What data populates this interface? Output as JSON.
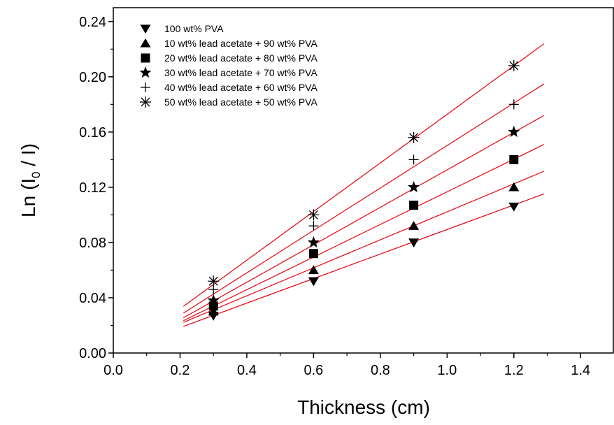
{
  "chart_data": {
    "type": "scatter",
    "xlabel": "Thickness (cm)",
    "ylabel_main": "Ln (I",
    "ylabel_sub": "0",
    "ylabel_end": " / I)",
    "xlim": [
      0.0,
      1.5
    ],
    "ylim": [
      0.0,
      0.25
    ],
    "xticks": [
      "0.0",
      "0.2",
      "0.4",
      "0.6",
      "0.8",
      "1.0",
      "1.2",
      "1.4"
    ],
    "yticks": [
      "0.00",
      "0.04",
      "0.08",
      "0.12",
      "0.16",
      "0.20",
      "0.24"
    ],
    "grid": false,
    "legend_position": "top-left",
    "fit_color": "#e8000b",
    "fit_x_range": [
      0.21,
      1.29
    ],
    "series": [
      {
        "name": "100 wt% PVA",
        "marker": "triangle-down",
        "x": [
          0.3,
          0.6,
          0.9,
          1.2
        ],
        "y": [
          0.027,
          0.052,
          0.08,
          0.106
        ],
        "fit": {
          "slope": 0.0888,
          "intercept": 0.0006
        }
      },
      {
        "name": "10 wt% lead acetate + 90 wt% PVA",
        "marker": "triangle-up",
        "x": [
          0.3,
          0.6,
          0.9,
          1.2
        ],
        "y": [
          0.03,
          0.06,
          0.092,
          0.12
        ],
        "fit": {
          "slope": 0.1013,
          "intercept": 0.0009
        }
      },
      {
        "name": "20 wt%  lead acetate + 80 wt% PVA",
        "marker": "square",
        "x": [
          0.3,
          0.6,
          0.9,
          1.2
        ],
        "y": [
          0.034,
          0.072,
          0.107,
          0.14
        ],
        "fit": {
          "slope": 0.1181,
          "intercept": -0.0014
        }
      },
      {
        "name": "30 wt%  lead acetate + 70 wt% PVA",
        "marker": "star",
        "x": [
          0.3,
          0.6,
          0.9,
          1.2
        ],
        "y": [
          0.038,
          0.08,
          0.12,
          0.16
        ],
        "fit": {
          "slope": 0.1356,
          "intercept": -0.003
        }
      },
      {
        "name": "40 wt%  lead acetate + 60 wt% PVA",
        "marker": "plus",
        "x": [
          0.3,
          0.6,
          0.9,
          1.2
        ],
        "y": [
          0.046,
          0.092,
          0.14,
          0.18
        ],
        "fit": {
          "slope": 0.1536,
          "intercept": -0.0034
        }
      },
      {
        "name": "50 wt%  lead acetate + 50 wt% PVA",
        "marker": "asterisk",
        "x": [
          0.3,
          0.6,
          0.9,
          1.2
        ],
        "y": [
          0.052,
          0.1,
          0.156,
          0.208
        ],
        "fit": {
          "slope": 0.176,
          "intercept": -0.0032
        }
      }
    ]
  }
}
